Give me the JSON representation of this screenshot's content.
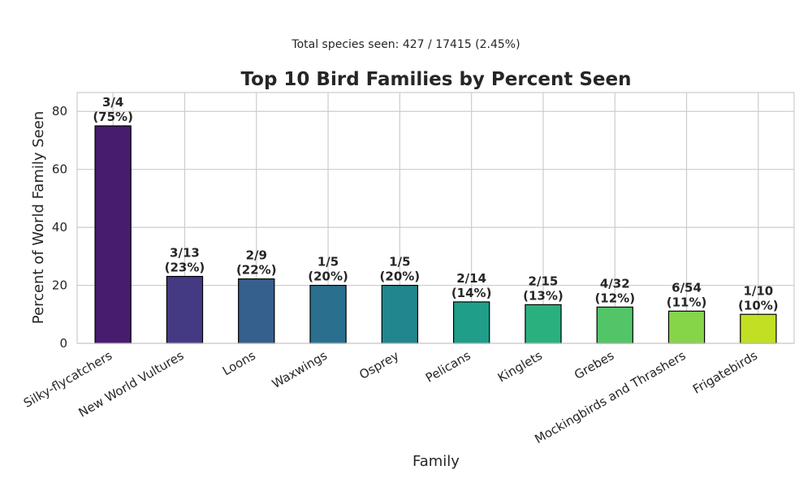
{
  "subtitle": "Total species seen: 427 / 17415 (2.45%)",
  "chart_data": {
    "type": "bar",
    "title": "Top 10 Bird Families by Percent Seen",
    "xlabel": "Family",
    "ylabel": "Percent of World Family Seen",
    "ylim": [
      0,
      86.5
    ],
    "yticks": [
      0,
      20,
      40,
      60,
      80
    ],
    "grid": true,
    "categories": [
      "Silky-flycatchers",
      "New World Vultures",
      "Loons",
      "Waxwings",
      "Osprey",
      "Pelicans",
      "Kinglets",
      "Grebes",
      "Mockingbirds and Thrashers",
      "Frigatebirds"
    ],
    "values": [
      75,
      23.08,
      22.22,
      20,
      20,
      14.29,
      13.33,
      12.5,
      11.11,
      10
    ],
    "label_counts": [
      "3/4",
      "3/13",
      "2/9",
      "1/5",
      "1/5",
      "2/14",
      "2/15",
      "4/32",
      "6/54",
      "1/10"
    ],
    "label_percents": [
      "(75%)",
      "(23%)",
      "(22%)",
      "(20%)",
      "(20%)",
      "(14%)",
      "(13%)",
      "(12%)",
      "(11%)",
      "(10%)"
    ],
    "colors": [
      "#471b6e",
      "#443a83",
      "#355f8d",
      "#2a708e",
      "#22868e",
      "#1f9e89",
      "#2ab07f",
      "#52c569",
      "#86d549",
      "#c2df23"
    ]
  }
}
